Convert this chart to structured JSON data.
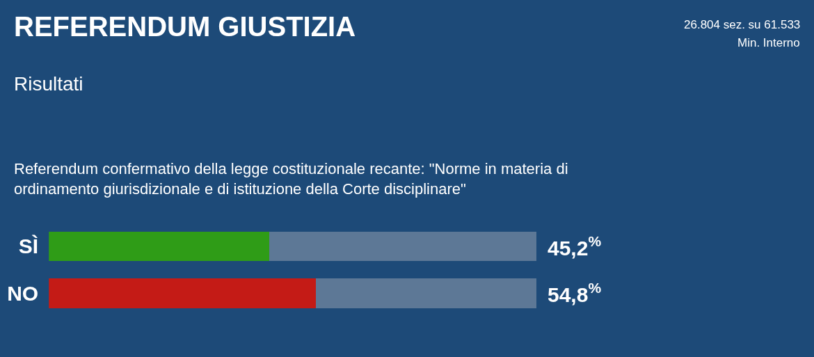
{
  "chart_data": {
    "type": "bar",
    "orientation": "horizontal",
    "stacked": true,
    "title": "REFERENDUM GIUSTIZIA",
    "subtitle": "Risultati",
    "annotations": [
      "Referendum confermativo della legge costituzionale recante: \"Norme in materia di ordinamento giurisdizionale e di istituzione della Corte disciplinare\"",
      "26.804 sez. su 61.533",
      "Min. Interno"
    ],
    "categories": [
      "SÌ",
      "NO"
    ],
    "series": [
      {
        "colors": [
          "#2f9c17",
          "#c41b16"
        ],
        "values": [
          45.2,
          54.8
        ],
        "value_labels": [
          "45,2$^{%}$",
          "54,8$^{%}$"
        ]
      },
      {
        "color": "#5d7896",
        "values": [
          54.8,
          45.2
        ]
      }
    ],
    "xlim": [
      0,
      100
    ],
    "tick_labels": "y"
  }
}
